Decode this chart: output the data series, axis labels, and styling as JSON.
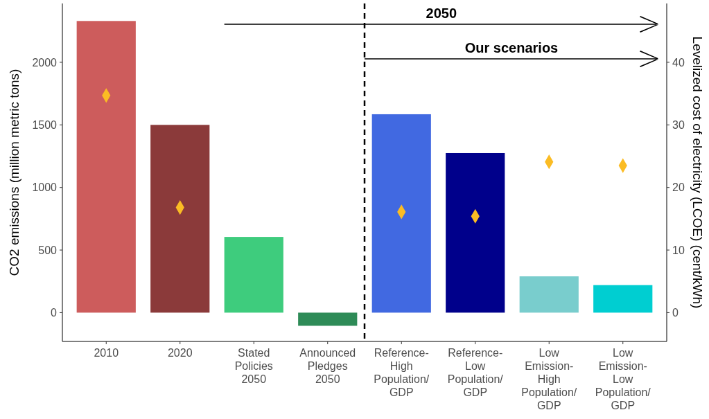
{
  "chart_data": {
    "type": "bar",
    "ylabel": "CO2 emissions (million metric tons)",
    "y2label": "Levelized cost of electricity (LCOE) (cent/kWh)",
    "categories": [
      "2010",
      "2020",
      "Stated\nPolicies\n2050",
      "Announced\nPledges\n2050",
      "Reference-\nHigh\nPopulation/\nGDP",
      "Reference-\nLow\nPopulation/\nGDP",
      "Low\nEmission-\nHigh\nPopulation/\nGDP",
      "Low\nEmission-\nLow\nPopulation/\nGDP"
    ],
    "series": [
      {
        "colors": [
          "#cd5c5c",
          "#8b3a3a",
          "#3ecc7d",
          "#2e8b57",
          "#4169e1",
          "#00008b",
          "#79cdcd",
          "#00ced1"
        ],
        "values": [
          2330,
          1500,
          605,
          -105,
          1585,
          1275,
          290,
          220
        ]
      },
      {
        "type": "scatter",
        "axis": "y2",
        "color": "#fbbc24",
        "marker": "diamond",
        "values": [
          34.7,
          16.8,
          null,
          null,
          16.1,
          15.4,
          24.1,
          23.5
        ]
      }
    ],
    "ylim": [
      -230,
      2470
    ],
    "yticks": [
      0,
      500,
      1000,
      1500,
      2000
    ],
    "y2lim": [
      -4.6,
      49.4
    ],
    "y2ticks": [
      0,
      10,
      20,
      30,
      40
    ],
    "annotations": [
      "2050",
      "Our scenarios"
    ],
    "grid": false
  }
}
